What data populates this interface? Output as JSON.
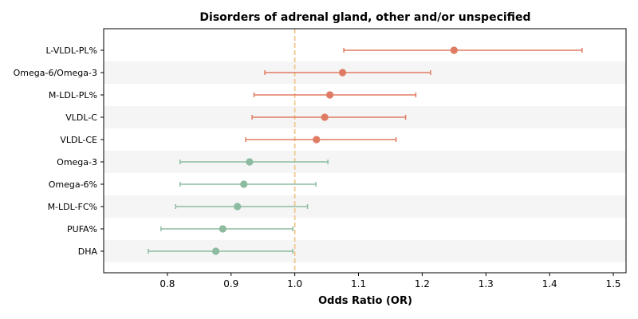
{
  "chart_data": {
    "type": "forest",
    "title": "Disorders of adrenal gland, other and/or unspecified",
    "xlabel": "Odds Ratio (OR)",
    "xlim": [
      0.7,
      1.52
    ],
    "xticks": [
      "0.8",
      "0.9",
      "1.0",
      "1.1",
      "1.2",
      "1.3",
      "1.4",
      "1.5"
    ],
    "reference_line": 1.0,
    "colors": {
      "positive": "#e07b63",
      "negative": "#8dbba0",
      "reference": "#f0c27f",
      "band": "#f5f5f5"
    },
    "rows": [
      {
        "label": "L-VLDL-PL%",
        "or": 1.25,
        "lo": 1.077,
        "hi": 1.451
      },
      {
        "label": "Omega-6/Omega-3",
        "or": 1.075,
        "lo": 0.953,
        "hi": 1.213
      },
      {
        "label": "M-LDL-PL%",
        "or": 1.055,
        "lo": 0.936,
        "hi": 1.19
      },
      {
        "label": "VLDL-C",
        "or": 1.047,
        "lo": 0.933,
        "hi": 1.174
      },
      {
        "label": "VLDL-CE",
        "or": 1.034,
        "lo": 0.923,
        "hi": 1.159
      },
      {
        "label": "Omega-3",
        "or": 0.929,
        "lo": 0.82,
        "hi": 1.052
      },
      {
        "label": "Omega-6%",
        "or": 0.92,
        "lo": 0.82,
        "hi": 1.033
      },
      {
        "label": "M-LDL-FC%",
        "or": 0.91,
        "lo": 0.813,
        "hi": 1.02
      },
      {
        "label": "PUFA%",
        "or": 0.887,
        "lo": 0.79,
        "hi": 0.997
      },
      {
        "label": "DHA",
        "or": 0.876,
        "lo": 0.77,
        "hi": 0.997
      }
    ]
  }
}
